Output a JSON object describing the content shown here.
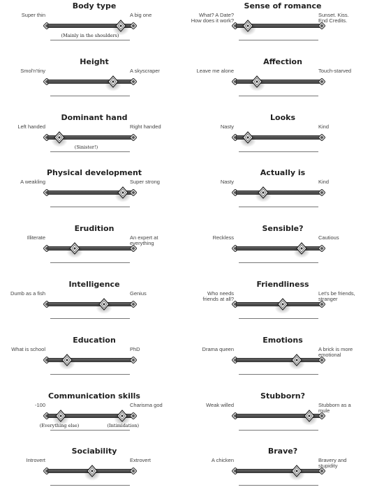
{
  "left": [
    {
      "title": "Body type",
      "low": "Super thin",
      "high": "A big one",
      "value": 0.9,
      "notes": [
        "(Mainly in the shoulders)"
      ],
      "note_pos": [
        0.5
      ]
    },
    {
      "title": "Height",
      "low": "Smol'n'tiny",
      "high": "A skyscraper",
      "value": 0.8,
      "notes": [],
      "note_pos": []
    },
    {
      "title": "Dominant hand",
      "low": "Left handed",
      "high": "Right handed",
      "value": 0.1,
      "notes": [
        "(Sinister!)"
      ],
      "note_pos": [
        0.45
      ]
    },
    {
      "title": "Physical development",
      "low": "A weakling",
      "high": "Super strong",
      "value": 0.93,
      "notes": [],
      "note_pos": []
    },
    {
      "title": "Erudition",
      "low": "Illiterate",
      "high": "An expert at\neverything",
      "value": 0.3,
      "notes": [],
      "note_pos": []
    },
    {
      "title": "Intelligence",
      "low": "Dumb as a fish",
      "high": "Genius",
      "value": 0.68,
      "notes": [],
      "note_pos": []
    },
    {
      "title": "Education",
      "low": "What is school",
      "high": "PhD",
      "value": 0.2,
      "notes": [],
      "note_pos": []
    },
    {
      "title": "Communication skills",
      "low": "-100",
      "high": "Charisma god",
      "value": 0.12,
      "value2": 0.92,
      "notes": [
        "(Everything else)",
        "(Intimidation)"
      ],
      "note_pos": [
        0.1,
        0.93
      ]
    },
    {
      "title": "Sociability",
      "low": "Introvert",
      "high": "Extrovert",
      "value": 0.53,
      "notes": [],
      "note_pos": []
    }
  ],
  "right": [
    {
      "title": "Sense of romance",
      "low": "What? A Date?\nHow does it work?",
      "high": "Sunset. Kiss.\nEnd Credits.",
      "value": 0.1,
      "notes": [],
      "note_pos": []
    },
    {
      "title": "Affection",
      "low": "Leave me alone",
      "high": "Touch-starved",
      "value": 0.22,
      "notes": [],
      "note_pos": []
    },
    {
      "title": "Looks",
      "low": "Nasty",
      "high": "Kind",
      "value": 0.1,
      "notes": [],
      "note_pos": []
    },
    {
      "title": "Actually is",
      "low": "Nasty",
      "high": "Kind",
      "value": 0.3,
      "notes": [],
      "note_pos": []
    },
    {
      "title": "Sensible?",
      "low": "Reckless",
      "high": "Cautious",
      "value": 0.8,
      "notes": [],
      "note_pos": []
    },
    {
      "title": "Friendliness",
      "low": "Who needs\nfriends at all?",
      "high": "Let's be friends,\nstranger",
      "value": 0.55,
      "notes": [],
      "note_pos": []
    },
    {
      "title": "Emotions",
      "low": "Drama queen",
      "high": "A brick is more\nemotional",
      "value": 0.74,
      "notes": [],
      "note_pos": []
    },
    {
      "title": "Stubborn?",
      "low": "Weak willed",
      "high": "Stubborn as a\nmule",
      "value": 0.9,
      "notes": [],
      "note_pos": []
    },
    {
      "title": "Brave?",
      "low": "A chicken",
      "high": "Bravery and\nstupidity",
      "value": 0.74,
      "notes": [],
      "note_pos": []
    }
  ]
}
